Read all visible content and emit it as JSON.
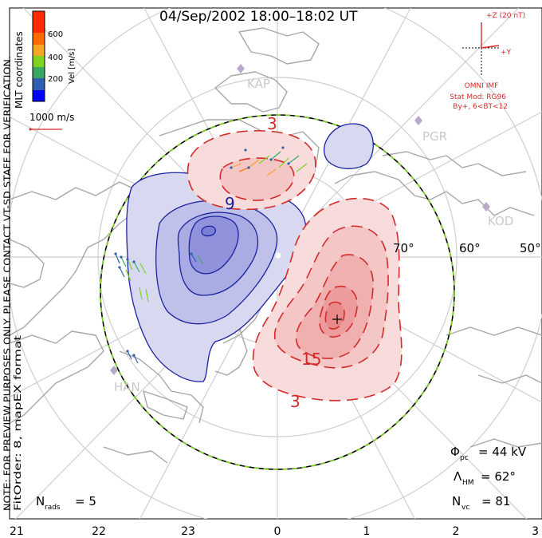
{
  "title": "04/Sep/2002 18:00–18:02 UT",
  "colorbar": {
    "label": "Vel [m/s]",
    "ticks": [
      "600",
      "400",
      "200"
    ],
    "colors": [
      "#0000ff",
      "#2f5fb0",
      "#3aa860",
      "#7ed321",
      "#f5a623",
      "#ff6a00",
      "#ff2a00"
    ]
  },
  "coords_label": "MLT coordinates",
  "disclaimer": "NOTE: FOR PREVIEW PURPOSES ONLY. PLEASE CONTACT VT-SD STAFF FOR VERIFICATION.",
  "fit_order": "FitOrder: 8, mapEX format",
  "vector_scale": "1000 m/s",
  "imf": {
    "z_label": "+Z (20 nT)",
    "y_label": "+Y",
    "source": "OMNI IMF",
    "model": "Stat Mod: RG96",
    "condition": "By+, 6<BT<12"
  },
  "stations": [
    "KAP",
    "PGR",
    "KOD",
    "HAN"
  ],
  "latitude_labels": [
    "70°",
    "60°",
    "50°"
  ],
  "contour_labels": [
    "3",
    "15",
    "3",
    "9"
  ],
  "mlt_ticks": [
    "21",
    "22",
    "23",
    "0",
    "1",
    "2",
    "3"
  ],
  "stats": {
    "phi_pc_sym": "Φ",
    "phi_pc_sub": "pc",
    "phi_pc_val": "= 44 kV",
    "lambda_hm_sym": "Λ",
    "lambda_hm_sub": "HM",
    "lambda_hm_val": "= 62°",
    "n_vc_sym": "N",
    "n_vc_sub": "vc",
    "n_vc_val": "= 81",
    "n_rads_sym": "N",
    "n_rads_sub": "rads",
    "n_rads_val": "= 5"
  },
  "colors": {
    "positive": "#d42a2a",
    "negative": "#1a22a0",
    "hmb": "#7ed321",
    "land": "#9a9a9a",
    "grid": "#c8c8c8"
  }
}
